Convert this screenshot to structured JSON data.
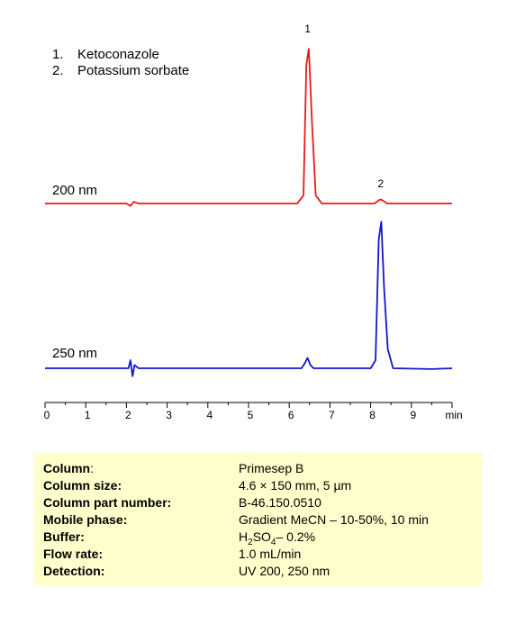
{
  "chart_data": {
    "type": "line",
    "title": "",
    "xlabel": "",
    "ylabel": "",
    "x_unit": "min",
    "xlim": [
      0,
      10
    ],
    "x_ticks": [
      "0",
      "1",
      "2",
      "3",
      "4",
      "5",
      "6",
      "7",
      "8",
      "9",
      "min"
    ],
    "grid": false,
    "legend": [
      {
        "num": "1.",
        "name": "Ketoconazole"
      },
      {
        "num": "2.",
        "name": "Potassium sorbate"
      }
    ],
    "peak_labels": [
      {
        "label": "1",
        "x": 6.45
      },
      {
        "label": "2",
        "x": 8.25
      }
    ],
    "series": [
      {
        "name": "200 nm",
        "color": "#e8191b",
        "x": [
          0.0,
          2.0,
          2.1,
          2.18,
          2.3,
          6.2,
          6.35,
          6.42,
          6.48,
          6.56,
          6.65,
          6.8,
          8.1,
          8.2,
          8.25,
          8.32,
          8.4,
          10.0
        ],
        "y": [
          0.0,
          0.0,
          -0.15,
          0.1,
          0.0,
          0.0,
          0.5,
          8.6,
          9.6,
          5.0,
          0.5,
          0.0,
          0.0,
          0.2,
          0.25,
          0.15,
          0.0,
          0.0
        ]
      },
      {
        "name": "250 nm",
        "color": "#1515cc",
        "x": [
          0.0,
          2.05,
          2.1,
          2.15,
          2.2,
          2.3,
          6.3,
          6.38,
          6.45,
          6.52,
          6.6,
          8.0,
          8.12,
          8.2,
          8.26,
          8.33,
          8.42,
          8.55,
          9.5,
          10.0
        ],
        "y": [
          0.0,
          0.0,
          0.5,
          -0.5,
          0.2,
          0.0,
          0.0,
          0.3,
          0.65,
          0.2,
          0.0,
          0.0,
          0.5,
          8.0,
          9.1,
          5.0,
          1.2,
          0.0,
          -0.05,
          0.0
        ]
      }
    ]
  },
  "conditions": [
    {
      "key": "Column",
      "sep": ":",
      "value": "Primesep  B"
    },
    {
      "key": "Column size",
      "sep": ":",
      "value": "4.6 × 150 mm, 5 µm"
    },
    {
      "key": "Column part number",
      "sep": ":",
      "value": "B-46.150.0510"
    },
    {
      "key": "Mobile phase",
      "sep": ":",
      "value": "Gradient MeCN – 10-50%, 10 min"
    },
    {
      "key": "Buffer",
      "sep": ":",
      "value": "H2SO4– 0.2%"
    },
    {
      "key": "Flow rate",
      "sep": ":",
      "value": "1.0 mL/min"
    },
    {
      "key": "Detection",
      "sep": ":",
      "value": "UV 200, 250  nm"
    }
  ]
}
